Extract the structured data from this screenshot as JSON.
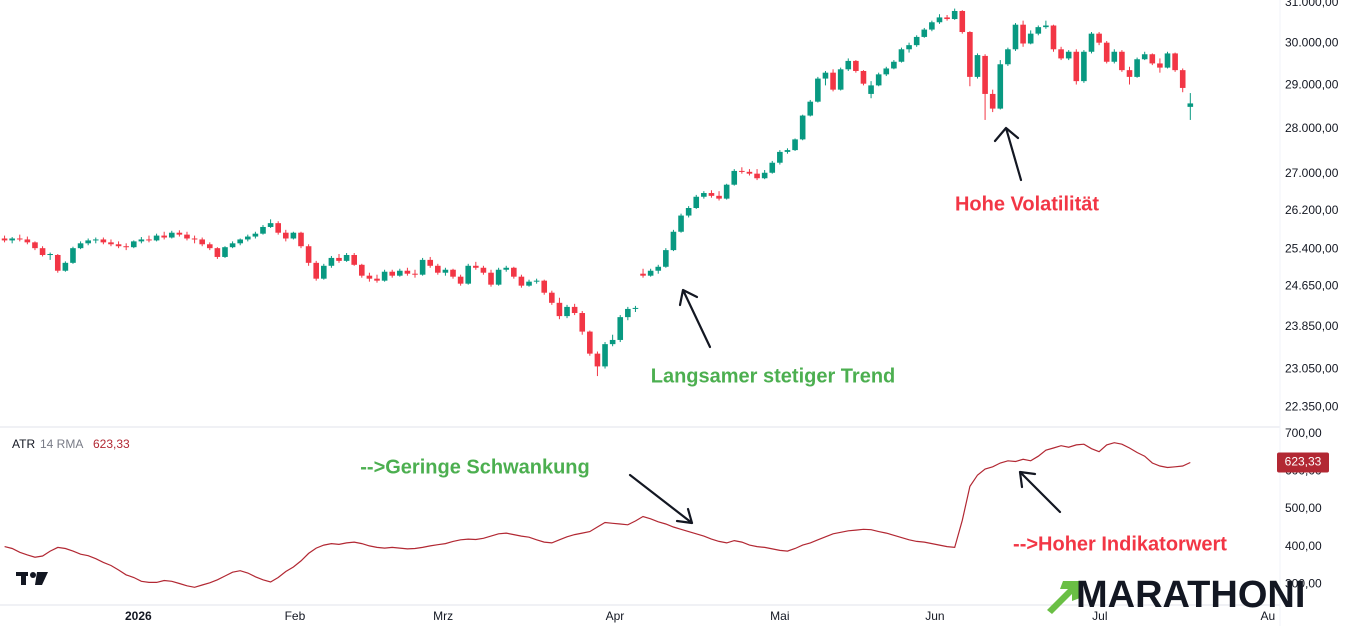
{
  "chart_data": [
    {
      "type": "candlestick",
      "log": true,
      "up_color": "#089981",
      "down_color": "#f23645",
      "grid": false,
      "xlim": [
        -0.6,
        167.8
      ],
      "xticks": [
        {
          "value": 17.6,
          "label": "2026"
        },
        {
          "value": 38.2,
          "label": "Feb"
        },
        {
          "value": 57.7,
          "label": "Mrz"
        },
        {
          "value": 80.3,
          "label": "Apr"
        },
        {
          "value": 102,
          "label": "Mai"
        },
        {
          "value": 122.4,
          "label": "Jun"
        },
        {
          "value": 144.1,
          "label": "Jul"
        },
        {
          "value": 166.2,
          "label": "Au"
        }
      ],
      "ylim": [
        22030,
        31075
      ],
      "yticks": [
        {
          "value": 31000,
          "label": "31.000,00"
        },
        {
          "value": 30000,
          "label": "30.000,00"
        },
        {
          "value": 29000,
          "label": "29.000,00"
        },
        {
          "value": 28000,
          "label": "28.000,00"
        },
        {
          "value": 27000,
          "label": "27.000,00"
        },
        {
          "value": 26200,
          "label": "26.200,00"
        },
        {
          "value": 25400,
          "label": "25.400,00"
        },
        {
          "value": 24650,
          "label": "24.650,00"
        },
        {
          "value": 23850,
          "label": "23.850,00"
        },
        {
          "value": 23050,
          "label": "23.050,00"
        },
        {
          "value": 22350,
          "label": "22.350,00"
        }
      ],
      "annotations": [
        {
          "text": "Langsamer stetiger Trend",
          "color": "#4caf50"
        },
        {
          "text": "Hohe Volatilität",
          "color": "#f23645"
        }
      ],
      "ohlc": [
        [
          25620,
          25680,
          25540,
          25580
        ],
        [
          25580,
          25650,
          25520,
          25620
        ],
        [
          25620,
          25700,
          25560,
          25600
        ],
        [
          25600,
          25660,
          25500,
          25540
        ],
        [
          25540,
          25560,
          25380,
          25420
        ],
        [
          25420,
          25460,
          25250,
          25280
        ],
        [
          25280,
          25330,
          25180,
          25300
        ],
        [
          25280,
          25300,
          24920,
          24960
        ],
        [
          24960,
          25150,
          24940,
          25120
        ],
        [
          25120,
          25450,
          25100,
          25420
        ],
        [
          25420,
          25560,
          25400,
          25520
        ],
        [
          25520,
          25620,
          25480,
          25580
        ],
        [
          25580,
          25640,
          25520,
          25600
        ],
        [
          25600,
          25640,
          25500,
          25540
        ],
        [
          25540,
          25600,
          25460,
          25500
        ],
        [
          25500,
          25560,
          25420,
          25460
        ],
        [
          25460,
          25520,
          25380,
          25440
        ],
        [
          25440,
          25580,
          25420,
          25560
        ],
        [
          25560,
          25650,
          25520,
          25600
        ],
        [
          25600,
          25680,
          25540,
          25580
        ],
        [
          25580,
          25720,
          25560,
          25680
        ],
        [
          25680,
          25760,
          25600,
          25640
        ],
        [
          25640,
          25780,
          25620,
          25740
        ],
        [
          25740,
          25790,
          25660,
          25700
        ],
        [
          25700,
          25760,
          25580,
          25620
        ],
        [
          25620,
          25680,
          25520,
          25600
        ],
        [
          25600,
          25640,
          25460,
          25500
        ],
        [
          25500,
          25540,
          25380,
          25420
        ],
        [
          25420,
          25440,
          25200,
          25240
        ],
        [
          25240,
          25460,
          25220,
          25440
        ],
        [
          25440,
          25560,
          25420,
          25520
        ],
        [
          25520,
          25620,
          25480,
          25600
        ],
        [
          25600,
          25700,
          25560,
          25660
        ],
        [
          25660,
          25760,
          25620,
          25720
        ],
        [
          25720,
          25900,
          25700,
          25860
        ],
        [
          25860,
          26020,
          25840,
          25940
        ],
        [
          25940,
          25980,
          25700,
          25740
        ],
        [
          25740,
          25800,
          25560,
          25620
        ],
        [
          25620,
          25760,
          25600,
          25740
        ],
        [
          25740,
          25760,
          25420,
          25460
        ],
        [
          25460,
          25500,
          25060,
          25120
        ],
        [
          25120,
          25160,
          24760,
          24800
        ],
        [
          24800,
          25100,
          24780,
          25060
        ],
        [
          25060,
          25260,
          25020,
          25220
        ],
        [
          25220,
          25300,
          25120,
          25160
        ],
        [
          25160,
          25320,
          25140,
          25280
        ],
        [
          25280,
          25320,
          25060,
          25080
        ],
        [
          25080,
          25100,
          24820,
          24860
        ],
        [
          24860,
          24920,
          24740,
          24800
        ],
        [
          24800,
          24880,
          24720,
          24760
        ],
        [
          24760,
          24980,
          24740,
          24940
        ],
        [
          24940,
          24980,
          24820,
          24860
        ],
        [
          24860,
          25000,
          24840,
          24960
        ],
        [
          24960,
          25020,
          24860,
          24900
        ],
        [
          24900,
          24980,
          24820,
          24880
        ],
        [
          24880,
          25220,
          24860,
          25180
        ],
        [
          25180,
          25240,
          25020,
          25060
        ],
        [
          25060,
          25100,
          24880,
          24920
        ],
        [
          24920,
          25020,
          24860,
          24980
        ],
        [
          24980,
          25000,
          24800,
          24840
        ],
        [
          24840,
          24880,
          24660,
          24700
        ],
        [
          24700,
          25100,
          24680,
          25060
        ],
        [
          25060,
          25140,
          24980,
          25020
        ],
        [
          25020,
          25060,
          24880,
          24920
        ],
        [
          24920,
          24980,
          24640,
          24680
        ],
        [
          24680,
          25020,
          24660,
          24980
        ],
        [
          24980,
          25060,
          24940,
          25020
        ],
        [
          25020,
          25040,
          24800,
          24840
        ],
        [
          24840,
          24880,
          24620,
          24660
        ],
        [
          24660,
          24780,
          24640,
          24740
        ],
        [
          24740,
          24800,
          24700,
          24760
        ],
        [
          24760,
          24780,
          24480,
          24520
        ],
        [
          24520,
          24560,
          24280,
          24320
        ],
        [
          24320,
          24420,
          24000,
          24060
        ],
        [
          24060,
          24280,
          24020,
          24240
        ],
        [
          24240,
          24300,
          24080,
          24120
        ],
        [
          24120,
          24160,
          23700,
          23760
        ],
        [
          23760,
          23780,
          23300,
          23340
        ],
        [
          23340,
          23380,
          22920,
          23100
        ],
        [
          23100,
          23560,
          23060,
          23520
        ],
        [
          23520,
          23700,
          23480,
          23600
        ],
        [
          23600,
          24080,
          23560,
          24040
        ],
        [
          24040,
          24240,
          23980,
          24200
        ],
        [
          24200,
          24260,
          24140,
          24220
        ],
        [
          24900,
          25000,
          24820,
          24860
        ],
        [
          24860,
          25000,
          24840,
          24960
        ],
        [
          24960,
          25080,
          24900,
          25040
        ],
        [
          25040,
          25420,
          25020,
          25380
        ],
        [
          25380,
          25800,
          25360,
          25760
        ],
        [
          25760,
          26140,
          25740,
          26100
        ],
        [
          26100,
          26300,
          26060,
          26260
        ],
        [
          26260,
          26540,
          26240,
          26500
        ],
        [
          26500,
          26620,
          26460,
          26580
        ],
        [
          26580,
          26640,
          26480,
          26520
        ],
        [
          26520,
          26620,
          26420,
          26460
        ],
        [
          26460,
          26780,
          26440,
          26760
        ],
        [
          26760,
          27100,
          26740,
          27060
        ],
        [
          27060,
          27140,
          27000,
          27040
        ],
        [
          27040,
          27100,
          26960,
          27000
        ],
        [
          27000,
          27100,
          26860,
          26900
        ],
        [
          26900,
          27080,
          26880,
          27020
        ],
        [
          27020,
          27280,
          27000,
          27240
        ],
        [
          27240,
          27520,
          27200,
          27480
        ],
        [
          27480,
          27560,
          27440,
          27520
        ],
        [
          27520,
          27780,
          27500,
          27760
        ],
        [
          27760,
          28320,
          27740,
          28300
        ],
        [
          28300,
          28660,
          28280,
          28620
        ],
        [
          28620,
          29200,
          28600,
          29160
        ],
        [
          29160,
          29340,
          29000,
          29300
        ],
        [
          29300,
          29380,
          28860,
          28900
        ],
        [
          28900,
          29420,
          28880,
          29380
        ],
        [
          29380,
          29640,
          29340,
          29580
        ],
        [
          29580,
          29600,
          29300,
          29340
        ],
        [
          29340,
          29360,
          29000,
          29040
        ],
        [
          28800,
          29100,
          28700,
          29000
        ],
        [
          29000,
          29300,
          28980,
          29260
        ],
        [
          29260,
          29440,
          29220,
          29400
        ],
        [
          29400,
          29600,
          29380,
          29560
        ],
        [
          29560,
          29900,
          29540,
          29860
        ],
        [
          29860,
          30020,
          29780,
          29960
        ],
        [
          29960,
          30200,
          29920,
          30160
        ],
        [
          30160,
          30380,
          30140,
          30340
        ],
        [
          30340,
          30560,
          30300,
          30520
        ],
        [
          30520,
          30720,
          30480,
          30640
        ],
        [
          30640,
          30700,
          30560,
          30600
        ],
        [
          30600,
          30860,
          30580,
          30800
        ],
        [
          30800,
          30820,
          30240,
          30280
        ],
        [
          30280,
          30300,
          28980,
          29200
        ],
        [
          29200,
          29760,
          29160,
          29720
        ],
        [
          29700,
          29740,
          28200,
          28800
        ],
        [
          28800,
          28900,
          28380,
          28460
        ],
        [
          28460,
          29600,
          28440,
          29500
        ],
        [
          29500,
          29900,
          29460,
          29860
        ],
        [
          29860,
          30500,
          29820,
          30460
        ],
        [
          30460,
          30560,
          29920,
          30000
        ],
        [
          30000,
          30320,
          29980,
          30240
        ],
        [
          30240,
          30440,
          30200,
          30400
        ],
        [
          30400,
          30560,
          30360,
          30440
        ],
        [
          30440,
          30460,
          29800,
          29860
        ],
        [
          29860,
          29920,
          29600,
          29640
        ],
        [
          29640,
          29840,
          29600,
          29800
        ],
        [
          29800,
          29860,
          29020,
          29100
        ],
        [
          29100,
          29840,
          29060,
          29800
        ],
        [
          29800,
          30280,
          29760,
          30240
        ],
        [
          30240,
          30280,
          29960,
          30020
        ],
        [
          30020,
          30060,
          29520,
          29560
        ],
        [
          29560,
          29860,
          29520,
          29800
        ],
        [
          29800,
          29840,
          29320,
          29360
        ],
        [
          29360,
          29440,
          29020,
          29200
        ],
        [
          29200,
          29660,
          29180,
          29620
        ],
        [
          29620,
          29800,
          29600,
          29740
        ],
        [
          29740,
          29760,
          29480,
          29520
        ],
        [
          29520,
          29640,
          29300,
          29420
        ],
        [
          29420,
          29800,
          29400,
          29760
        ],
        [
          29760,
          29780,
          29320,
          29360
        ],
        [
          29360,
          29400,
          28840,
          28940
        ],
        [
          28500,
          28820,
          28200,
          28580
        ]
      ]
    },
    {
      "type": "line",
      "name": "ATR",
      "params": "14 RMA",
      "last_value_label": "623,33",
      "color": "#b22833",
      "ylim": [
        245,
        715
      ],
      "yticks": [
        {
          "value": 300,
          "label": "300,00"
        },
        {
          "value": 400,
          "label": "400,00"
        },
        {
          "value": 500,
          "label": "500,00"
        },
        {
          "value": 600,
          "label": "600,00"
        },
        {
          "value": 700,
          "label": "700,00"
        }
      ],
      "annotations": [
        {
          "text": "-->Geringe Schwankung",
          "color": "#4caf50"
        },
        {
          "text": "-->Hoher Indikatorwert",
          "color": "#f23645"
        }
      ],
      "values": [
        400,
        395,
        385,
        378,
        372,
        375,
        388,
        398,
        395,
        388,
        380,
        376,
        368,
        358,
        350,
        338,
        325,
        318,
        308,
        305,
        305,
        310,
        308,
        302,
        296,
        292,
        298,
        304,
        312,
        322,
        332,
        336,
        330,
        320,
        312,
        306,
        318,
        334,
        346,
        362,
        382,
        396,
        404,
        408,
        406,
        410,
        412,
        408,
        402,
        398,
        396,
        398,
        396,
        394,
        395,
        398,
        402,
        405,
        408,
        414,
        418,
        420,
        419,
        422,
        428,
        434,
        436,
        432,
        428,
        425,
        418,
        412,
        410,
        418,
        426,
        432,
        436,
        440,
        452,
        464,
        462,
        460,
        458,
        468,
        480,
        474,
        466,
        460,
        452,
        446,
        440,
        434,
        428,
        420,
        414,
        410,
        416,
        412,
        404,
        400,
        398,
        394,
        390,
        388,
        395,
        404,
        410,
        418,
        426,
        434,
        438,
        442,
        444,
        446,
        445,
        440,
        436,
        430,
        424,
        418,
        414,
        412,
        408,
        404,
        400,
        398,
        470,
        560,
        590,
        606,
        612,
        622,
        628,
        626,
        632,
        628,
        640,
        656,
        662,
        668,
        664,
        670,
        672,
        660,
        652,
        670,
        676,
        672,
        662,
        650,
        640,
        622,
        614,
        610,
        612,
        614,
        623.33
      ]
    }
  ],
  "watermark": "MARATHONI"
}
